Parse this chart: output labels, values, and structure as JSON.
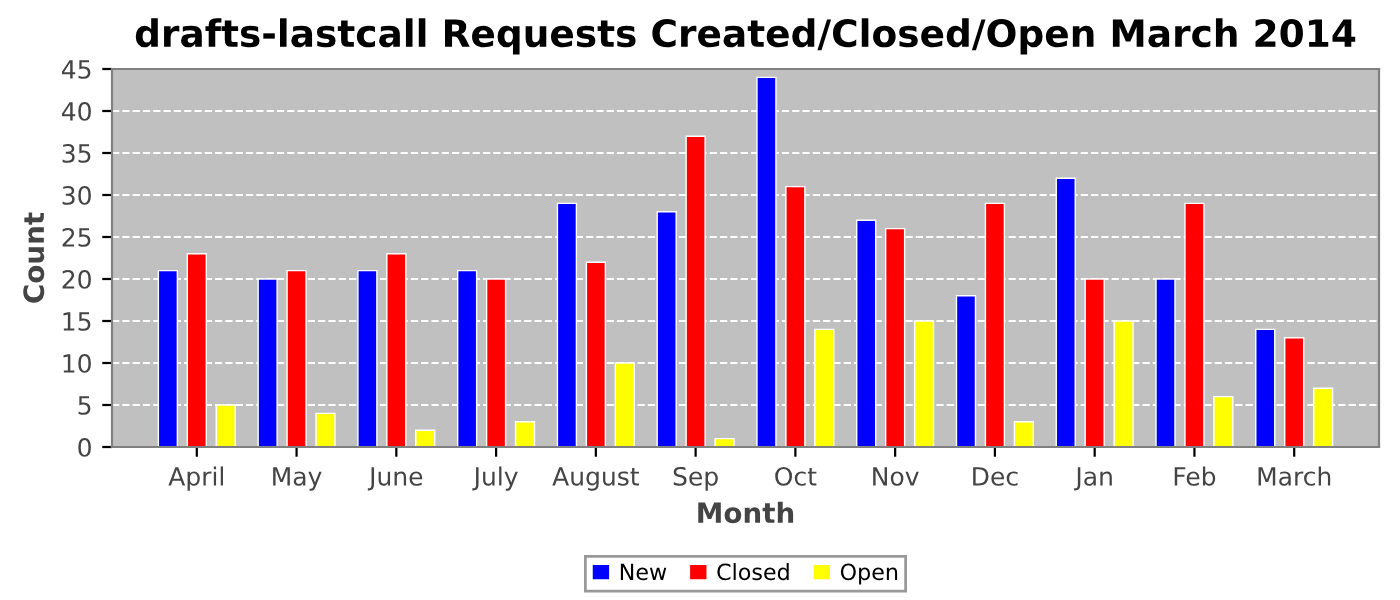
{
  "chart_data": {
    "type": "bar",
    "title": "drafts-lastcall Requests Created/Closed/Open March 2014",
    "xlabel": "Month",
    "ylabel": "Count",
    "categories": [
      "April",
      "May",
      "June",
      "July",
      "August",
      "Sep",
      "Oct",
      "Nov",
      "Dec",
      "Jan",
      "Feb",
      "March"
    ],
    "series": [
      {
        "name": "New",
        "color": "#0000ff",
        "values": [
          21,
          20,
          21,
          21,
          29,
          28,
          44,
          27,
          18,
          32,
          20,
          14
        ]
      },
      {
        "name": "Closed",
        "color": "#ff0000",
        "values": [
          23,
          21,
          23,
          20,
          22,
          37,
          31,
          26,
          29,
          20,
          29,
          13
        ]
      },
      {
        "name": "Open",
        "color": "#ffff00",
        "values": [
          5,
          4,
          2,
          3,
          10,
          1,
          14,
          15,
          3,
          15,
          6,
          7
        ]
      }
    ],
    "ylim": [
      0,
      45
    ],
    "yticks": [
      0,
      5,
      10,
      15,
      20,
      25,
      30,
      35,
      40,
      45
    ],
    "grid": "y",
    "legend": "bottom"
  }
}
